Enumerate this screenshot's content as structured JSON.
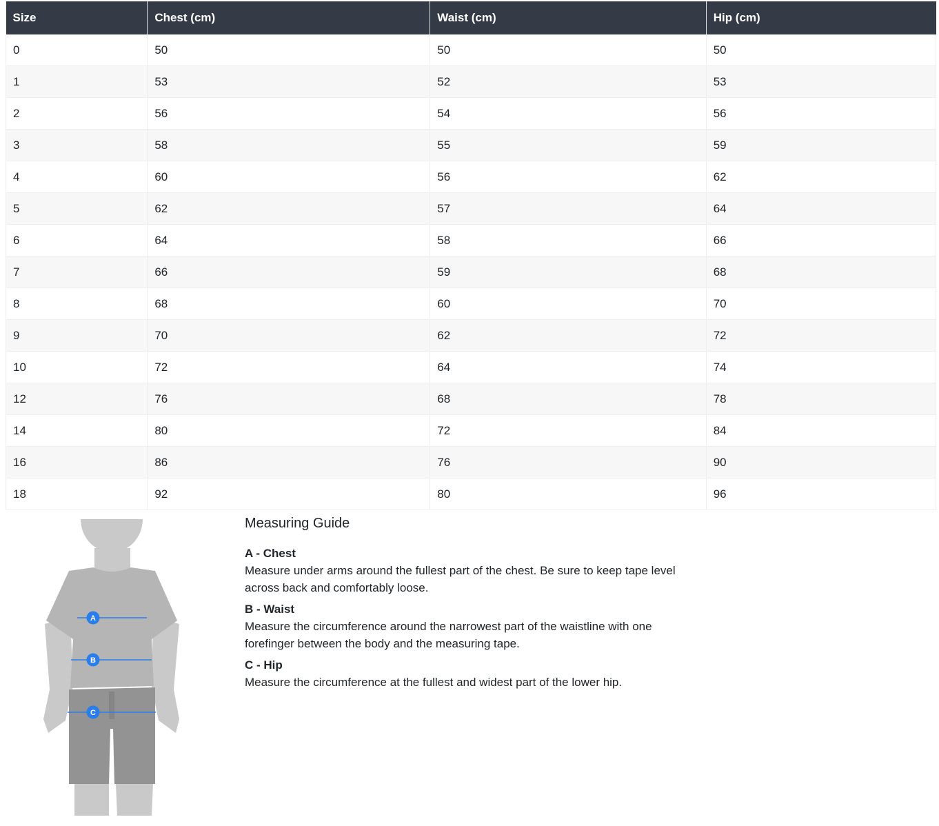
{
  "table": {
    "headers": [
      "Size",
      "Chest (cm)",
      "Waist (cm)",
      "Hip (cm)"
    ],
    "rows": [
      [
        "0",
        "50",
        "50",
        "50"
      ],
      [
        "1",
        "53",
        "52",
        "53"
      ],
      [
        "2",
        "56",
        "54",
        "56"
      ],
      [
        "3",
        "58",
        "55",
        "59"
      ],
      [
        "4",
        "60",
        "56",
        "62"
      ],
      [
        "5",
        "62",
        "57",
        "64"
      ],
      [
        "6",
        "64",
        "58",
        "66"
      ],
      [
        "7",
        "66",
        "59",
        "68"
      ],
      [
        "8",
        "68",
        "60",
        "70"
      ],
      [
        "9",
        "70",
        "62",
        "72"
      ],
      [
        "10",
        "72",
        "64",
        "74"
      ],
      [
        "12",
        "76",
        "68",
        "78"
      ],
      [
        "14",
        "80",
        "72",
        "84"
      ],
      [
        "16",
        "86",
        "76",
        "90"
      ],
      [
        "18",
        "92",
        "80",
        "96"
      ]
    ]
  },
  "figure": {
    "markers": [
      "A",
      "B",
      "C"
    ],
    "accent": "#2b7de9"
  },
  "guide": {
    "title": "Measuring Guide",
    "items": [
      {
        "label": "A - Chest",
        "text": "Measure under arms around the fullest part of the chest. Be sure to keep tape level across back and comfortably loose."
      },
      {
        "label": "B - Waist",
        "text": "Measure the circumference around the narrowest part of the waistline with one forefinger between the body and the measuring tape."
      },
      {
        "label": "C - Hip",
        "text": "Measure the circumference at the fullest and widest part of the lower hip."
      }
    ]
  }
}
